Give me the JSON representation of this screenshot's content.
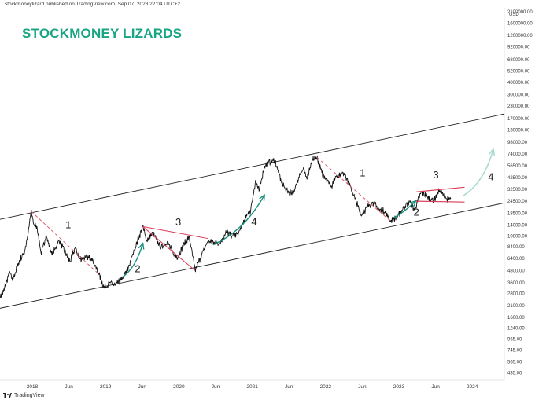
{
  "header": "stockmoneylizard published on TradingView.com, Sep 07, 2023 22:04 UTC+2",
  "brand": "STOCKMONEY LIZARDS",
  "footer": "TradingView",
  "colors": {
    "brand": "#17a583",
    "price": "#111111",
    "channel": "#222222",
    "dashed": "#e05a6c",
    "pattern": "#d9405a",
    "arrow": "#1a8f7e",
    "projection": "#a8d8d2",
    "axis_text": "#333333"
  },
  "chart_data": {
    "type": "line",
    "title": "",
    "xlabel": "",
    "ylabel": "",
    "yscale": "log",
    "y_unit": "USD",
    "y_ticks": [
      "2100000.00",
      "1600000.00",
      "1200000.00",
      "920000.00",
      "680000.00",
      "520000.00",
      "400000.00",
      "300000.00",
      "230000.00",
      "170000.00",
      "130000.00",
      "98000.00",
      "74000.00",
      "56500.00",
      "42500.00",
      "32500.00",
      "24500.00",
      "18500.00",
      "14000.00",
      "10800.00",
      "8400.00",
      "6400.00",
      "4800.00",
      "3600.00",
      "2800.00",
      "2100.00",
      "1600.00",
      "1240.00",
      "965.00",
      "745.00",
      "565.00",
      "435.00"
    ],
    "x_ticks": [
      "2018",
      "Jun",
      "2019",
      "Jun",
      "2020",
      "Jun",
      "2021",
      "Jun",
      "2022",
      "Jun",
      "2023",
      "Jun",
      "2024"
    ],
    "x_range": [
      "2017-07-15",
      "2024-05-31"
    ],
    "y_range": [
      365,
      2300000
    ],
    "series": [
      {
        "values": [
          [
            "2017-07-15",
            2600
          ],
          [
            "2017-08-01",
            2900
          ],
          [
            "2017-09-01",
            4700
          ],
          [
            "2017-09-15",
            3800
          ],
          [
            "2017-10-15",
            5700
          ],
          [
            "2017-11-15",
            7600
          ],
          [
            "2017-12-01",
            11000
          ],
          [
            "2017-12-17",
            19300
          ],
          [
            "2018-01-01",
            14000
          ],
          [
            "2018-01-15",
            13500
          ],
          [
            "2018-02-06",
            7000
          ],
          [
            "2018-03-01",
            11000
          ],
          [
            "2018-04-01",
            6900
          ],
          [
            "2018-05-05",
            9800
          ],
          [
            "2018-06-29",
            5900
          ],
          [
            "2018-07-25",
            8200
          ],
          [
            "2018-08-15",
            6300
          ],
          [
            "2018-09-15",
            6500
          ],
          [
            "2018-10-15",
            6400
          ],
          [
            "2018-11-20",
            4400
          ],
          [
            "2018-12-15",
            3200
          ],
          [
            "2019-01-15",
            3600
          ],
          [
            "2019-02-08",
            3400
          ],
          [
            "2019-03-15",
            3900
          ],
          [
            "2019-04-15",
            5100
          ],
          [
            "2019-05-15",
            7800
          ],
          [
            "2019-06-26",
            13500
          ],
          [
            "2019-07-15",
            9800
          ],
          [
            "2019-08-15",
            11500
          ],
          [
            "2019-09-25",
            8200
          ],
          [
            "2019-10-26",
            9500
          ],
          [
            "2019-11-25",
            7100
          ],
          [
            "2019-12-18",
            6600
          ],
          [
            "2020-01-15",
            8800
          ],
          [
            "2020-02-13",
            10500
          ],
          [
            "2020-03-13",
            4800
          ],
          [
            "2020-04-15",
            7000
          ],
          [
            "2020-05-15",
            9500
          ],
          [
            "2020-06-15",
            9400
          ],
          [
            "2020-07-15",
            9200
          ],
          [
            "2020-08-15",
            11800
          ],
          [
            "2020-09-15",
            10800
          ],
          [
            "2020-10-15",
            11500
          ],
          [
            "2020-11-15",
            16000
          ],
          [
            "2020-12-15",
            20000
          ],
          [
            "2021-01-08",
            40000
          ],
          [
            "2021-01-25",
            31000
          ],
          [
            "2021-02-21",
            56000
          ],
          [
            "2021-03-13",
            61000
          ],
          [
            "2021-04-14",
            64000
          ],
          [
            "2021-05-19",
            37000
          ],
          [
            "2021-06-22",
            30000
          ],
          [
            "2021-07-20",
            30500
          ],
          [
            "2021-08-15",
            47000
          ],
          [
            "2021-09-07",
            52000
          ],
          [
            "2021-09-21",
            41000
          ],
          [
            "2021-10-20",
            65000
          ],
          [
            "2021-11-10",
            68500
          ],
          [
            "2021-12-04",
            48000
          ],
          [
            "2022-01-22",
            35000
          ],
          [
            "2022-02-10",
            44000
          ],
          [
            "2022-03-28",
            47500
          ],
          [
            "2022-05-12",
            28000
          ],
          [
            "2022-06-18",
            17600
          ],
          [
            "2022-07-15",
            21000
          ],
          [
            "2022-08-15",
            24000
          ],
          [
            "2022-09-15",
            20000
          ],
          [
            "2022-10-15",
            19200
          ],
          [
            "2022-11-09",
            15500
          ],
          [
            "2022-12-15",
            16800
          ],
          [
            "2023-01-15",
            21000
          ],
          [
            "2023-02-15",
            24500
          ],
          [
            "2023-03-10",
            20000
          ],
          [
            "2023-04-14",
            30500
          ],
          [
            "2023-05-15",
            26800
          ],
          [
            "2023-06-15",
            25000
          ],
          [
            "2023-07-13",
            31500
          ],
          [
            "2023-08-17",
            26000
          ],
          [
            "2023-09-07",
            25800
          ]
        ]
      }
    ],
    "channel": {
      "upper": [
        [
          "2017-07-15",
          16000
        ],
        [
          "2024-05-31",
          190000
        ]
      ],
      "lower": [
        [
          "2017-07-15",
          1980
        ],
        [
          "2024-05-31",
          23500
        ]
      ]
    },
    "drawings": {
      "dashed": [
        [
          [
            "2017-12-17",
            19300
          ],
          [
            "2018-11-20",
            4400
          ]
        ],
        [
          [
            "2019-06-26",
            13500
          ],
          [
            "2020-03-13",
            4800
          ]
        ],
        [
          [
            "2021-11-10",
            68500
          ],
          [
            "2022-11-09",
            15500
          ]
        ]
      ],
      "triangle": [
        [
          [
            "2019-06-26",
            13500
          ],
          [
            "2020-05-15",
            10200
          ]
        ],
        [
          [
            "2019-06-26",
            13500
          ],
          [
            "2020-03-13",
            4800
          ]
        ]
      ],
      "range": [
        [
          [
            "2023-03-20",
            30500
          ],
          [
            "2023-11-15",
            34000
          ]
        ],
        [
          [
            "2023-03-20",
            24500
          ],
          [
            "2023-11-15",
            24000
          ]
        ]
      ],
      "arrows": [
        [
          [
            "2019-03-15",
            4100
          ],
          [
            "2019-05-20",
            5000
          ],
          [
            "2019-06-26",
            9000
          ]
        ],
        [
          [
            "2020-06-10",
            8800
          ],
          [
            "2020-11-10",
            12000
          ],
          [
            "2021-02-20",
            28000
          ]
        ],
        [
          [
            "2022-11-25",
            16500
          ],
          [
            "2023-01-20",
            19000
          ],
          [
            "2023-03-15",
            24500
          ]
        ]
      ],
      "projection": [
        [
          "2023-11-10",
          28000
        ],
        [
          "2024-02-20",
          38000
        ],
        [
          "2024-04-05",
          82000
        ]
      ]
    },
    "wave_labels": [
      {
        "text": "1",
        "date": "2018-06-20",
        "price": 13000
      },
      {
        "text": "2",
        "date": "2019-06-01",
        "price": 4600
      },
      {
        "text": "3",
        "date": "2019-12-20",
        "price": 13900
      },
      {
        "text": "4",
        "date": "2021-01-01",
        "price": 14000
      },
      {
        "text": "1",
        "date": "2022-06-25",
        "price": 44000
      },
      {
        "text": "2",
        "date": "2023-03-20",
        "price": 17400
      },
      {
        "text": "3",
        "date": "2023-06-25",
        "price": 42000
      },
      {
        "text": "4",
        "date": "2024-03-25",
        "price": 40000
      }
    ]
  }
}
